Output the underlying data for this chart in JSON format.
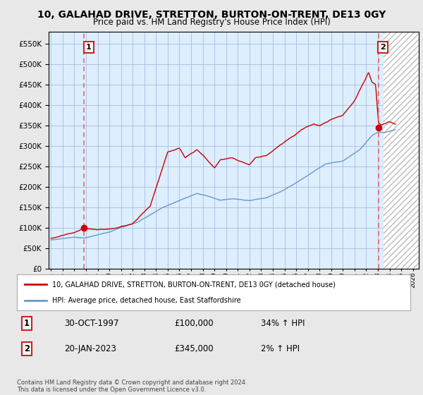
{
  "title": "10, GALAHAD DRIVE, STRETTON, BURTON-ON-TRENT, DE13 0GY",
  "subtitle": "Price paid vs. HM Land Registry's House Price Index (HPI)",
  "ytick_values": [
    0,
    50000,
    100000,
    150000,
    200000,
    250000,
    300000,
    350000,
    400000,
    450000,
    500000,
    550000
  ],
  "ylim": [
    0,
    580000
  ],
  "xlim_start": 1994.8,
  "xlim_end": 2026.5,
  "x_ticks": [
    1995,
    1996,
    1997,
    1998,
    1999,
    2000,
    2001,
    2002,
    2003,
    2004,
    2005,
    2006,
    2007,
    2008,
    2009,
    2010,
    2011,
    2012,
    2013,
    2014,
    2015,
    2016,
    2017,
    2018,
    2019,
    2020,
    2021,
    2022,
    2023,
    2024,
    2025,
    2026
  ],
  "background_color": "#e8e8e8",
  "plot_bg_color": "#ddeeff",
  "grid_color": "#aabbdd",
  "hatch_start": 2023.5,
  "sale1_date": 1997.83,
  "sale1_price": 100000,
  "sale1_label": "1",
  "sale1_x_label": "30-OCT-1997",
  "sale1_price_label": "£100,000",
  "sale1_hpi_label": "34% ↑ HPI",
  "sale2_date": 2023.05,
  "sale2_price": 345000,
  "sale2_label": "2",
  "sale2_x_label": "20-JAN-2023",
  "sale2_price_label": "£345,000",
  "sale2_hpi_label": "2% ↑ HPI",
  "red_line_color": "#cc0000",
  "blue_line_color": "#6699cc",
  "dashed_line_color": "#ee6666",
  "legend_line1": "10, GALAHAD DRIVE, STRETTON, BURTON-ON-TRENT, DE13 0GY (detached house)",
  "legend_line2": "HPI: Average price, detached house, East Staffordshire",
  "footnote": "Contains HM Land Registry data © Crown copyright and database right 2024.\nThis data is licensed under the Open Government Licence v3.0.",
  "title_fontsize": 10,
  "subtitle_fontsize": 8.5
}
